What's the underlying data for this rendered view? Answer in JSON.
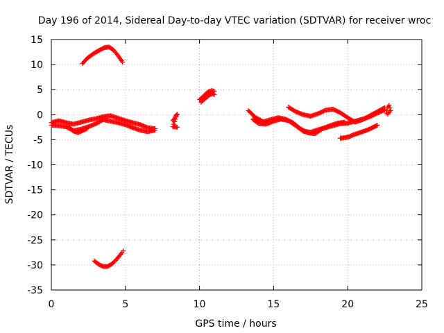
{
  "chart_data": {
    "type": "scatter",
    "title": "Day 196 of 2014, Sidereal Day-to-day VTEC variation (SDTVAR) for receiver wroc",
    "xlabel": "GPS time / hours",
    "ylabel": "SDTVAR / TECUs",
    "xlim": [
      0,
      25
    ],
    "ylim": [
      -35,
      15
    ],
    "xticks": [
      0,
      5,
      10,
      15,
      20,
      25
    ],
    "yticks": [
      15,
      10,
      5,
      0,
      -5,
      -10,
      -15,
      -20,
      -25,
      -30,
      -35
    ],
    "grid": true,
    "marker": "+",
    "color": "#ff0000",
    "series": [
      {
        "name": "arc-upper-0-5h",
        "x": [
          2.1,
          2.4,
          2.8,
          3.2,
          3.6,
          3.9,
          4.2,
          4.5,
          4.8
        ],
        "y": [
          10.2,
          11.2,
          12.1,
          12.8,
          13.4,
          13.5,
          12.9,
          11.8,
          10.5
        ]
      },
      {
        "name": "arc-lower-3-5h",
        "x": [
          2.9,
          3.2,
          3.5,
          3.8,
          4.1,
          4.4,
          4.7,
          4.85
        ],
        "y": [
          -29.2,
          -29.9,
          -30.3,
          -30.3,
          -29.8,
          -28.9,
          -27.8,
          -27.2
        ]
      },
      {
        "name": "band-0-7h-a",
        "x": [
          0.0,
          0.5,
          1.0,
          1.5,
          2.0,
          2.5,
          3.0,
          3.5,
          4.0,
          4.5,
          5.0,
          5.5,
          6.0,
          6.5,
          7.0
        ],
        "y": [
          -1.6,
          -1.2,
          -1.6,
          -1.9,
          -1.5,
          -1.1,
          -0.8,
          -0.4,
          -0.2,
          -0.7,
          -1.2,
          -1.6,
          -2.0,
          -2.6,
          -2.8
        ]
      },
      {
        "name": "band-0-7h-b",
        "x": [
          0.0,
          0.5,
          1.0,
          1.5,
          2.0,
          2.5,
          3.0,
          3.5,
          4.0,
          4.5,
          5.0,
          5.5,
          6.0,
          6.5,
          7.0
        ],
        "y": [
          -2.1,
          -2.2,
          -2.4,
          -3.2,
          -2.9,
          -2.4,
          -1.8,
          -1.0,
          -1.3,
          -1.6,
          -2.0,
          -2.6,
          -3.1,
          -3.4,
          -3.1
        ]
      },
      {
        "name": "band-0-7h-c",
        "x": [
          1.2,
          1.5,
          1.8,
          2.1,
          2.4
        ],
        "y": [
          -2.5,
          -3.3,
          -3.6,
          -3.2,
          -2.8
        ]
      },
      {
        "name": "points-8.3h",
        "x": [
          8.2,
          8.3,
          8.4,
          8.5,
          8.2,
          8.5
        ],
        "y": [
          -1.2,
          -0.8,
          -0.2,
          0.1,
          -2.4,
          -2.5
        ]
      },
      {
        "name": "arc-10-11h",
        "x": [
          10.0,
          10.2,
          10.4,
          10.6,
          10.8,
          11.0
        ],
        "y": [
          3.0,
          3.5,
          4.1,
          4.6,
          4.8,
          4.7
        ]
      },
      {
        "name": "arc-10-11h-b",
        "x": [
          10.1,
          10.3,
          10.5,
          10.7,
          10.9,
          11.0
        ],
        "y": [
          2.5,
          3.0,
          3.5,
          4.0,
          4.2,
          4.0
        ]
      },
      {
        "name": "band-13-20h",
        "x": [
          13.3,
          13.8,
          14.3,
          14.8,
          15.3,
          15.8,
          16.3,
          16.8,
          17.3,
          17.8,
          18.3,
          18.8,
          19.3,
          19.8
        ],
        "y": [
          0.8,
          -0.6,
          -1.4,
          -1.0,
          -0.6,
          -0.9,
          -1.6,
          -2.8,
          -3.6,
          -3.8,
          -2.8,
          -2.2,
          -1.7,
          -1.5
        ]
      },
      {
        "name": "band-13-20h-b",
        "x": [
          13.6,
          14.0,
          14.5,
          15.0,
          15.5,
          16.0,
          16.5,
          17.0,
          17.5
        ],
        "y": [
          -0.9,
          -1.8,
          -1.9,
          -1.3,
          -0.9,
          -1.2,
          -2.2,
          -3.3,
          -3.6
        ]
      },
      {
        "name": "arc-16-23h",
        "x": [
          16.0,
          16.5,
          17.0,
          17.5,
          18.0,
          18.5,
          19.0,
          19.5,
          20.0,
          20.5,
          21.0,
          21.5,
          22.0,
          22.5
        ],
        "y": [
          1.5,
          0.6,
          0.0,
          -0.3,
          0.2,
          0.9,
          1.1,
          0.4,
          -0.6,
          -1.5,
          -1.0,
          -0.2,
          0.6,
          1.4
        ]
      },
      {
        "name": "band-17-22h",
        "x": [
          17.0,
          17.5,
          18.0,
          18.5,
          19.0,
          19.5,
          20.0,
          20.5,
          21.0,
          21.5,
          22.0,
          22.5
        ],
        "y": [
          -3.3,
          -3.5,
          -3.0,
          -2.6,
          -2.2,
          -1.8,
          -1.7,
          -1.3,
          -0.9,
          -0.4,
          0.3,
          1.0
        ]
      },
      {
        "name": "arc-19.5-21h",
        "x": [
          19.5,
          19.8,
          20.1,
          20.4,
          20.7,
          21.0,
          21.3,
          21.6,
          22.0
        ],
        "y": [
          -4.7,
          -4.6,
          -4.4,
          -4.0,
          -3.7,
          -3.4,
          -3.1,
          -2.7,
          -2.1
        ]
      },
      {
        "name": "points-22.7h",
        "x": [
          22.6,
          22.7,
          22.8,
          22.9,
          22.7
        ],
        "y": [
          0.3,
          1.4,
          1.9,
          0.8,
          0.1
        ]
      }
    ]
  }
}
